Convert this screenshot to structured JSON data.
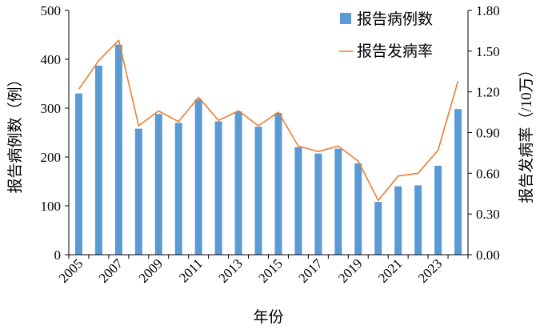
{
  "chart_data": {
    "type": "bar+line",
    "x": [
      2005,
      2006,
      2007,
      2008,
      2009,
      2010,
      2011,
      2012,
      2013,
      2014,
      2015,
      2016,
      2017,
      2018,
      2019,
      2020,
      2021,
      2022,
      2023,
      2024
    ],
    "x_tick_labels": [
      "2005",
      "2007",
      "2009",
      "2011",
      "2013",
      "2015",
      "2017",
      "2019",
      "2021",
      "2023"
    ],
    "xlabel": "年份",
    "ylabel_left": "报告病例数（例）",
    "ylabel_right": "报告发病率（/10万）",
    "ylim_left": [
      0,
      500
    ],
    "ylim_right": [
      0,
      1.8
    ],
    "y_ticks_left": [
      "0",
      "100",
      "200",
      "300",
      "400",
      "500"
    ],
    "y_ticks_right": [
      "0.00",
      "0.30",
      "0.60",
      "0.90",
      "1.20",
      "1.50",
      "1.80"
    ],
    "grid": false,
    "legend_position": "top-right",
    "series": [
      {
        "name": "报告病例数",
        "type": "bar",
        "axis": "left",
        "color": "#5b9bd5",
        "values": [
          330,
          387,
          430,
          258,
          288,
          270,
          318,
          273,
          293,
          262,
          290,
          220,
          207,
          217,
          187,
          108,
          140,
          142,
          182,
          298
        ]
      },
      {
        "name": "报告发病率",
        "type": "line",
        "axis": "right",
        "color": "#ed7d31",
        "values": [
          1.22,
          1.43,
          1.58,
          0.95,
          1.06,
          0.98,
          1.16,
          0.99,
          1.06,
          0.95,
          1.05,
          0.8,
          0.76,
          0.8,
          0.69,
          0.4,
          0.58,
          0.6,
          0.77,
          1.28
        ]
      }
    ]
  }
}
